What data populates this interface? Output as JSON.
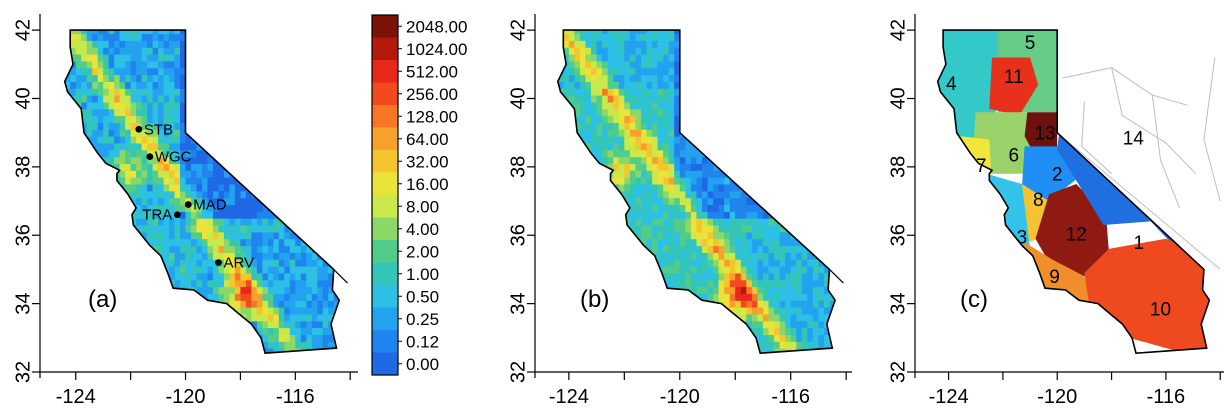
{
  "panels": [
    {
      "id": "a",
      "label": "(a)",
      "x_ticks": [
        "-124",
        "-120",
        "-116"
      ],
      "y_ticks": [
        "32",
        "34",
        "36",
        "38",
        "40",
        "42"
      ],
      "stations": [
        {
          "name": "STB",
          "lon": -121.7,
          "lat": 39.1
        },
        {
          "name": "WGC",
          "lon": -121.3,
          "lat": 38.3
        },
        {
          "name": "MAD",
          "lon": -119.9,
          "lat": 36.9
        },
        {
          "name": "TRA",
          "lon": -120.3,
          "lat": 36.6
        },
        {
          "name": "ARV",
          "lon": -118.8,
          "lat": 35.2
        }
      ]
    },
    {
      "id": "b",
      "label": "(b)",
      "x_ticks": [
        "-124",
        "-120",
        "-116"
      ],
      "y_ticks": [
        "32",
        "34",
        "36",
        "38",
        "40",
        "42"
      ]
    },
    {
      "id": "c",
      "label": "(c)",
      "x_ticks": [
        "-124",
        "-120",
        "-116"
      ],
      "y_ticks": [
        "32",
        "34",
        "36",
        "38",
        "40",
        "42"
      ],
      "regions": [
        {
          "id": "1",
          "label": "1",
          "color": "#1f6fe0"
        },
        {
          "id": "2",
          "label": "2",
          "color": "#1f8ef5"
        },
        {
          "id": "3",
          "label": "3",
          "color": "#33c2ea"
        },
        {
          "id": "4",
          "label": "4",
          "color": "#33c9c8"
        },
        {
          "id": "5",
          "label": "5",
          "color": "#66cc88"
        },
        {
          "id": "6",
          "label": "6",
          "color": "#9ad26a"
        },
        {
          "id": "7",
          "label": "7",
          "color": "#f2e63a"
        },
        {
          "id": "8",
          "label": "8",
          "color": "#f5c331"
        },
        {
          "id": "9",
          "label": "9",
          "color": "#f08f2a"
        },
        {
          "id": "10",
          "label": "10",
          "color": "#ef4a1f"
        },
        {
          "id": "11",
          "label": "11",
          "color": "#e8311c"
        },
        {
          "id": "12",
          "label": "12",
          "color": "#8e1a12"
        },
        {
          "id": "13",
          "label": "13",
          "color": "#6e100c"
        },
        {
          "id": "14",
          "label": "14",
          "color": "#ffffff"
        }
      ]
    }
  ],
  "colorbar": {
    "labels": [
      "2048.00",
      "1024.00",
      "512.00",
      "256.00",
      "128.00",
      "64.00",
      "32.00",
      "16.00",
      "8.00",
      "4.00",
      "2.00",
      "1.00",
      "0.50",
      "0.25",
      "0.12",
      "0.00"
    ],
    "colors": [
      "#7a1208",
      "#b31a0c",
      "#e8281a",
      "#f24a1f",
      "#f77625",
      "#f7a12a",
      "#f5c530",
      "#e9e33a",
      "#c9e84a",
      "#8cd866",
      "#52cc8a",
      "#33c6b8",
      "#2cc0e6",
      "#22a2ef",
      "#1f84ee",
      "#1f68e6"
    ]
  }
}
